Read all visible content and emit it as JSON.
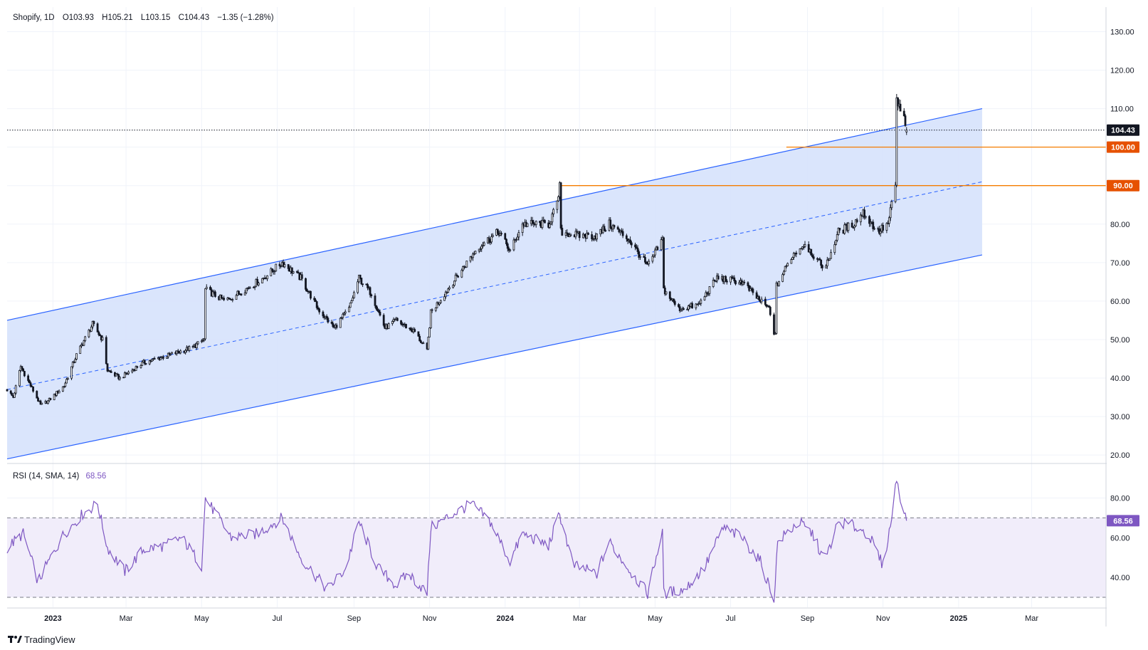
{
  "legend": {
    "symbol": "Shopify, 1D",
    "open": "O103.93",
    "high": "H105.21",
    "low": "L103.15",
    "close": "C104.43",
    "change": "−1.35 (−1.28%)"
  },
  "rsi_legend": {
    "label": "RSI (14, SMA, 14)",
    "value": "68.56"
  },
  "brand": {
    "name": "TradingView"
  },
  "colors": {
    "candle": "#131722",
    "channel_line": "#2962ff",
    "channel_fill": "#d6e2fc",
    "level_line": "#f57c00",
    "level_badge": "#e65100",
    "rsi_line": "#7e57c2",
    "rsi_fill": "#f1edfa",
    "grid": "#f0f3fa"
  },
  "chart_data": [
    {
      "type": "candlestick",
      "title": "Shopify, 1D",
      "ylim": [
        18,
        136
      ],
      "y_ticks": [
        "130.00",
        "120.00",
        "110.00",
        "80.00",
        "70.00",
        "60.00",
        "50.00",
        "40.00",
        "30.00",
        "20.00"
      ],
      "x_tick_labels": [
        "2023",
        "Mar",
        "May",
        "Jul",
        "Sep",
        "Nov",
        "2024",
        "Mar",
        "May",
        "Jul",
        "Sep",
        "Nov",
        "2025",
        "Mar"
      ],
      "x_tick_dates": [
        "2023-01-01",
        "2023-03-01",
        "2023-05-01",
        "2023-07-01",
        "2023-09-01",
        "2023-11-01",
        "2024-01-01",
        "2024-03-01",
        "2024-05-01",
        "2024-07-01",
        "2024-09-01",
        "2024-11-01",
        "2025-01-01",
        "2025-03-01"
      ],
      "x_range": [
        "2022-11-25",
        "2025-04-30"
      ],
      "price_anchors": [
        {
          "d": "2022-11-25",
          "c": 37
        },
        {
          "d": "2022-11-30",
          "c": 35
        },
        {
          "d": "2022-12-06",
          "c": 43
        },
        {
          "d": "2022-12-14",
          "c": 38
        },
        {
          "d": "2022-12-22",
          "c": 33
        },
        {
          "d": "2022-12-28",
          "c": 34
        },
        {
          "d": "2023-01-10",
          "c": 38
        },
        {
          "d": "2023-01-20",
          "c": 46
        },
        {
          "d": "2023-02-02",
          "c": 54
        },
        {
          "d": "2023-02-10",
          "c": 50
        },
        {
          "d": "2023-02-14",
          "c": 42
        },
        {
          "d": "2023-02-24",
          "c": 40
        },
        {
          "d": "2023-03-15",
          "c": 44
        },
        {
          "d": "2023-04-05",
          "c": 46
        },
        {
          "d": "2023-04-24",
          "c": 48
        },
        {
          "d": "2023-05-03",
          "c": 50
        },
        {
          "d": "2023-05-04",
          "c": 63
        },
        {
          "d": "2023-05-20",
          "c": 60
        },
        {
          "d": "2023-06-05",
          "c": 63
        },
        {
          "d": "2023-06-20",
          "c": 66
        },
        {
          "d": "2023-07-05",
          "c": 70
        },
        {
          "d": "2023-07-20",
          "c": 66
        },
        {
          "d": "2023-08-03",
          "c": 58
        },
        {
          "d": "2023-08-16",
          "c": 53
        },
        {
          "d": "2023-08-28",
          "c": 58
        },
        {
          "d": "2023-09-05",
          "c": 66
        },
        {
          "d": "2023-09-15",
          "c": 62
        },
        {
          "d": "2023-09-26",
          "c": 53
        },
        {
          "d": "2023-10-05",
          "c": 55
        },
        {
          "d": "2023-10-20",
          "c": 52
        },
        {
          "d": "2023-10-30",
          "c": 47
        },
        {
          "d": "2023-11-02",
          "c": 57
        },
        {
          "d": "2023-11-20",
          "c": 65
        },
        {
          "d": "2023-12-10",
          "c": 74
        },
        {
          "d": "2023-12-27",
          "c": 78
        },
        {
          "d": "2024-01-05",
          "c": 73
        },
        {
          "d": "2024-01-15",
          "c": 80
        },
        {
          "d": "2024-02-05",
          "c": 80
        },
        {
          "d": "2024-02-12",
          "c": 85
        },
        {
          "d": "2024-02-14",
          "c": 90
        },
        {
          "d": "2024-02-15",
          "c": 78
        },
        {
          "d": "2024-03-01",
          "c": 77
        },
        {
          "d": "2024-03-15",
          "c": 77
        },
        {
          "d": "2024-03-25",
          "c": 80
        },
        {
          "d": "2024-04-10",
          "c": 76
        },
        {
          "d": "2024-04-25",
          "c": 69
        },
        {
          "d": "2024-05-07",
          "c": 76
        },
        {
          "d": "2024-05-08",
          "c": 63
        },
        {
          "d": "2024-05-20",
          "c": 58
        },
        {
          "d": "2024-06-05",
          "c": 59
        },
        {
          "d": "2024-06-20",
          "c": 66
        },
        {
          "d": "2024-07-10",
          "c": 65
        },
        {
          "d": "2024-07-25",
          "c": 60
        },
        {
          "d": "2024-08-01",
          "c": 58
        },
        {
          "d": "2024-08-05",
          "c": 52
        },
        {
          "d": "2024-08-06",
          "c": 51
        },
        {
          "d": "2024-08-07",
          "c": 64
        },
        {
          "d": "2024-08-20",
          "c": 72
        },
        {
          "d": "2024-08-30",
          "c": 75
        },
        {
          "d": "2024-09-10",
          "c": 70
        },
        {
          "d": "2024-09-16",
          "c": 69
        },
        {
          "d": "2024-09-26",
          "c": 78
        },
        {
          "d": "2024-10-08",
          "c": 80
        },
        {
          "d": "2024-10-16",
          "c": 83
        },
        {
          "d": "2024-10-28",
          "c": 78
        },
        {
          "d": "2024-11-05",
          "c": 80
        },
        {
          "d": "2024-11-11",
          "c": 90
        },
        {
          "d": "2024-11-12",
          "c": 112
        },
        {
          "d": "2024-11-18",
          "c": 107
        },
        {
          "d": "2024-11-20",
          "c": 104.43
        }
      ],
      "last": {
        "open": 103.93,
        "high": 105.21,
        "low": 103.15,
        "close": 104.43
      },
      "channel": {
        "upper": [
          {
            "d": "2022-11-25",
            "v": 55
          },
          {
            "d": "2025-01-20",
            "v": 110
          }
        ],
        "middle": [
          {
            "d": "2022-11-25",
            "v": 37
          },
          {
            "d": "2025-01-20",
            "v": 91
          }
        ],
        "lower": [
          {
            "d": "2022-11-25",
            "v": 19
          },
          {
            "d": "2025-01-20",
            "v": 72
          }
        ]
      },
      "horizontal_levels": [
        {
          "value": 104.43,
          "label": "104.43",
          "style": "dotted",
          "from": "2022-11-25",
          "badge": "#131722"
        },
        {
          "value": 100,
          "label": "100.00",
          "style": "solid",
          "from": "2024-08-15",
          "badge": "#e65100"
        },
        {
          "value": 90,
          "label": "90.00",
          "style": "solid",
          "from": "2024-02-14",
          "badge": "#e65100"
        }
      ]
    },
    {
      "type": "line",
      "title": "RSI (14, SMA, 14)",
      "ylim": [
        25,
        97
      ],
      "y_ticks": [
        "80.00",
        "60.00",
        "40.00"
      ],
      "band": {
        "upper": 70,
        "lower": 30
      },
      "last_value": 68.56,
      "series": [
        {
          "values": [
            {
              "d": "2022-11-25",
              "v": 55
            },
            {
              "d": "2022-12-08",
              "v": 62
            },
            {
              "d": "2022-12-20",
              "v": 38
            },
            {
              "d": "2023-01-01",
              "v": 52
            },
            {
              "d": "2023-01-10",
              "v": 62
            },
            {
              "d": "2023-01-25",
              "v": 72
            },
            {
              "d": "2023-02-06",
              "v": 77
            },
            {
              "d": "2023-02-14",
              "v": 55
            },
            {
              "d": "2023-02-28",
              "v": 43
            },
            {
              "d": "2023-03-15",
              "v": 54
            },
            {
              "d": "2023-04-01",
              "v": 56
            },
            {
              "d": "2023-04-15",
              "v": 60
            },
            {
              "d": "2023-05-01",
              "v": 46
            },
            {
              "d": "2023-05-04",
              "v": 80
            },
            {
              "d": "2023-05-25",
              "v": 60
            },
            {
              "d": "2023-06-15",
              "v": 62
            },
            {
              "d": "2023-07-05",
              "v": 70
            },
            {
              "d": "2023-07-20",
              "v": 50
            },
            {
              "d": "2023-08-10",
              "v": 34
            },
            {
              "d": "2023-08-25",
              "v": 44
            },
            {
              "d": "2023-09-05",
              "v": 68
            },
            {
              "d": "2023-09-20",
              "v": 45
            },
            {
              "d": "2023-10-05",
              "v": 36
            },
            {
              "d": "2023-10-15",
              "v": 42
            },
            {
              "d": "2023-10-30",
              "v": 32
            },
            {
              "d": "2023-11-02",
              "v": 65
            },
            {
              "d": "2023-11-20",
              "v": 72
            },
            {
              "d": "2023-12-05",
              "v": 77
            },
            {
              "d": "2023-12-20",
              "v": 68
            },
            {
              "d": "2024-01-05",
              "v": 48
            },
            {
              "d": "2024-01-15",
              "v": 62
            },
            {
              "d": "2024-02-05",
              "v": 56
            },
            {
              "d": "2024-02-14",
              "v": 72
            },
            {
              "d": "2024-02-25",
              "v": 46
            },
            {
              "d": "2024-03-15",
              "v": 42
            },
            {
              "d": "2024-03-25",
              "v": 58
            },
            {
              "d": "2024-04-10",
              "v": 44
            },
            {
              "d": "2024-04-25",
              "v": 32
            },
            {
              "d": "2024-05-07",
              "v": 64
            },
            {
              "d": "2024-05-08",
              "v": 32
            },
            {
              "d": "2024-05-25",
              "v": 34
            },
            {
              "d": "2024-06-10",
              "v": 45
            },
            {
              "d": "2024-06-25",
              "v": 65
            },
            {
              "d": "2024-07-10",
              "v": 60
            },
            {
              "d": "2024-07-25",
              "v": 48
            },
            {
              "d": "2024-08-05",
              "v": 29
            },
            {
              "d": "2024-08-08",
              "v": 58
            },
            {
              "d": "2024-08-25",
              "v": 68
            },
            {
              "d": "2024-09-05",
              "v": 62
            },
            {
              "d": "2024-09-15",
              "v": 48
            },
            {
              "d": "2024-09-26",
              "v": 68
            },
            {
              "d": "2024-10-08",
              "v": 66
            },
            {
              "d": "2024-10-20",
              "v": 62
            },
            {
              "d": "2024-11-01",
              "v": 46
            },
            {
              "d": "2024-11-08",
              "v": 70
            },
            {
              "d": "2024-11-12",
              "v": 90
            },
            {
              "d": "2024-11-18",
              "v": 72
            },
            {
              "d": "2024-11-20",
              "v": 68.56
            }
          ]
        }
      ]
    }
  ]
}
